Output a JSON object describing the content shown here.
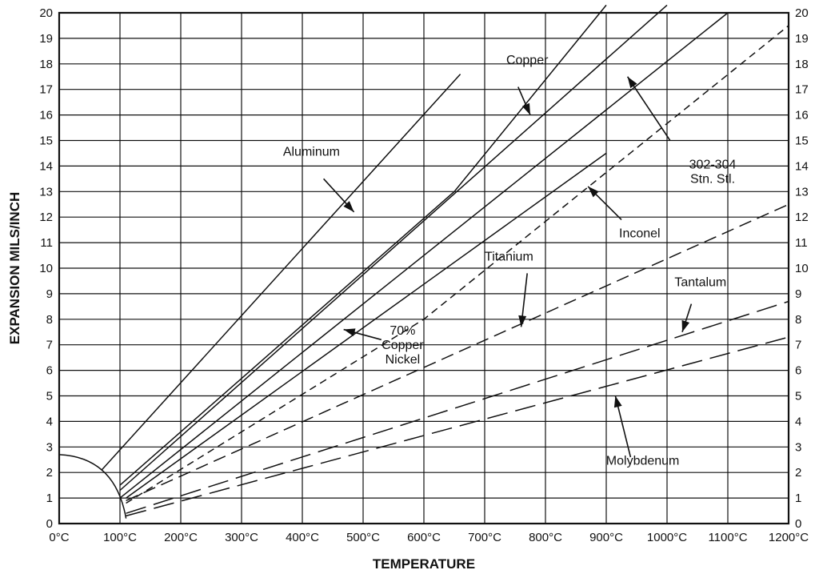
{
  "chart_data": {
    "type": "line",
    "title": "",
    "xlabel": "TEMPERATURE",
    "ylabel": "EXPANSION MILS/INCH",
    "x_ticks": [
      "0°C",
      "100°C",
      "200°C",
      "300°C",
      "400°C",
      "500°C",
      "600°C",
      "700°C",
      "800°C",
      "900°C",
      "1000°C",
      "1100°C",
      "1200°C"
    ],
    "y_ticks": [
      0,
      1,
      2,
      3,
      4,
      5,
      6,
      7,
      8,
      9,
      10,
      11,
      12,
      13,
      14,
      15,
      16,
      17,
      18,
      19,
      20
    ],
    "xlim": [
      0,
      1200
    ],
    "ylim": [
      0,
      20
    ],
    "grid": true,
    "legend": "none",
    "series": [
      {
        "name": "Aluminum",
        "dash": "solid",
        "x": [
          70,
          660
        ],
        "y": [
          2.1,
          17.6
        ]
      },
      {
        "name": "Copper",
        "dash": "solid",
        "x": [
          100,
          650,
          900
        ],
        "y": [
          1.5,
          13.0,
          20.3
        ]
      },
      {
        "name": "302-304 Stn. Stl.",
        "dash": "solid",
        "x": [
          100,
          1000
        ],
        "y": [
          1.3,
          20.3
        ]
      },
      {
        "name": "",
        "dash": "solid",
        "x": [
          100,
          1100
        ],
        "y": [
          1.0,
          20.0
        ]
      },
      {
        "name": "",
        "dash": "solid",
        "x": [
          110,
          900
        ],
        "y": [
          1.0,
          14.5
        ]
      },
      {
        "name": "70% Copper Nickel",
        "dash": "dashed-short",
        "x": [
          110,
          600,
          1200
        ],
        "y": [
          0.8,
          8.0,
          19.5
        ]
      },
      {
        "name": "Titanium",
        "dash": "dashed",
        "x": [
          110,
          1200
        ],
        "y": [
          0.9,
          12.5
        ]
      },
      {
        "name": "Tantalum",
        "dash": "dashed-long",
        "x": [
          110,
          1200
        ],
        "y": [
          0.4,
          8.7
        ]
      },
      {
        "name": "Molybdenum",
        "dash": "dashed-long",
        "x": [
          110,
          1200
        ],
        "y": [
          0.3,
          7.3
        ]
      }
    ],
    "annotations": [
      {
        "lines": [
          "Copper"
        ],
        "x": 770,
        "y": 18.0,
        "anchor": "middle",
        "arrow_from": [
          755,
          17.1
        ],
        "arrow_to": [
          775,
          16.0
        ]
      },
      {
        "lines": [
          "Aluminum"
        ],
        "x": 415,
        "y": 14.4,
        "anchor": "middle",
        "arrow_from": [
          435,
          13.5
        ],
        "arrow_to": [
          485,
          12.2
        ]
      },
      {
        "lines": [
          "302-304",
          "Stn. Stl."
        ],
        "x": 1075,
        "y": 13.9,
        "anchor": "middle",
        "arrow_from": [
          1005,
          15.0
        ],
        "arrow_to": [
          935,
          17.5
        ]
      },
      {
        "lines": [
          "Inconel"
        ],
        "x": 955,
        "y": 11.2,
        "anchor": "middle",
        "arrow_from": [
          925,
          11.9
        ],
        "arrow_to": [
          870,
          13.2
        ]
      },
      {
        "lines": [
          "Titanium"
        ],
        "x": 740,
        "y": 10.3,
        "anchor": "middle",
        "arrow_from": [
          770,
          9.8
        ],
        "arrow_to": [
          760,
          7.7
        ]
      },
      {
        "lines": [
          "70%",
          "Copper",
          "Nickel"
        ],
        "x": 565,
        "y": 7.4,
        "anchor": "middle",
        "arrow_from": [
          530,
          7.2
        ],
        "arrow_to": [
          468,
          7.6
        ]
      },
      {
        "lines": [
          "Tantalum"
        ],
        "x": 1055,
        "y": 9.3,
        "anchor": "middle",
        "arrow_from": [
          1040,
          8.6
        ],
        "arrow_to": [
          1025,
          7.5
        ]
      },
      {
        "lines": [
          "Molybdenum"
        ],
        "x": 960,
        "y": 2.3,
        "anchor": "middle",
        "arrow_from": [
          940,
          2.6
        ],
        "arrow_to": [
          915,
          5.0
        ]
      }
    ]
  }
}
